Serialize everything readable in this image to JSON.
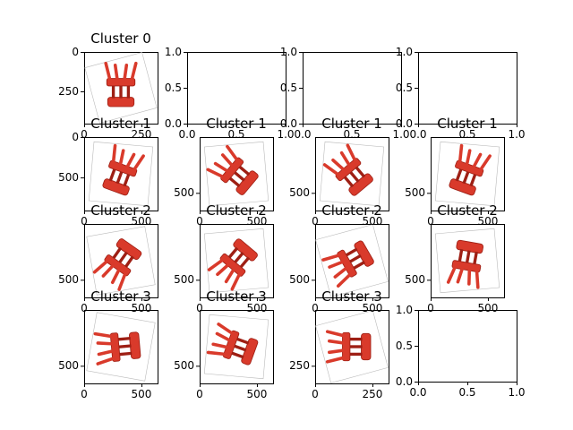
{
  "colors": {
    "chair": "#d93a2b",
    "chair_shade": "#9e1f14",
    "axis": "#000000"
  },
  "panels": [
    {
      "id": "r0c0",
      "title": "Cluster 0",
      "kind": "image",
      "xticks": [
        "0",
        "250"
      ],
      "yticks": [
        "0",
        "250"
      ],
      "rotation": 180
    },
    {
      "id": "r0c1",
      "title": "",
      "kind": "empty",
      "xticks": [
        "0.0",
        "0.5",
        "1.0"
      ],
      "yticks": [
        "0.0",
        "0.5",
        "1.0"
      ]
    },
    {
      "id": "r0c2",
      "title": "",
      "kind": "empty",
      "xticks": [
        "0.0",
        "0.5",
        "1.0"
      ],
      "yticks": [
        "0.0",
        "0.5",
        "1.0"
      ]
    },
    {
      "id": "r0c3",
      "title": "",
      "kind": "empty",
      "xticks": [
        "0.0",
        "0.5",
        "1.0"
      ],
      "yticks": [
        "0.0",
        "0.5",
        "1.0"
      ]
    },
    {
      "id": "r1c0",
      "title": "Cluster 1",
      "kind": "image",
      "xticks": [
        "0",
        "500"
      ],
      "yticks": [
        "0",
        "500"
      ],
      "rotation": 200
    },
    {
      "id": "r1c1",
      "title": "Cluster 1",
      "kind": "image",
      "xticks": [
        "0",
        "500"
      ],
      "yticks": [
        "500"
      ],
      "rotation": 130
    },
    {
      "id": "r1c2",
      "title": "Cluster 1",
      "kind": "image",
      "xticks": [
        "0",
        "500"
      ],
      "yticks": [
        "500"
      ],
      "rotation": 140
    },
    {
      "id": "r1c3",
      "title": "Cluster 1",
      "kind": "image",
      "xticks": [
        "0",
        "500"
      ],
      "yticks": [
        "500"
      ],
      "rotation": 200
    },
    {
      "id": "r2c0",
      "title": "Cluster 2",
      "kind": "image",
      "xticks": [
        "0",
        "500"
      ],
      "yticks": [
        "500"
      ],
      "rotation": 35
    },
    {
      "id": "r2c1",
      "title": "Cluster 2",
      "kind": "image",
      "xticks": [
        "0",
        "500"
      ],
      "yticks": [
        "500"
      ],
      "rotation": 40
    },
    {
      "id": "r2c2",
      "title": "Cluster 2",
      "kind": "image",
      "xticks": [
        "0",
        "500"
      ],
      "yticks": [
        "500"
      ],
      "rotation": 60
    },
    {
      "id": "r2c3",
      "title": "Cluster 2",
      "kind": "image",
      "xticks": [
        "0",
        "500"
      ],
      "yticks": [
        "500"
      ],
      "rotation": 10
    },
    {
      "id": "r3c0",
      "title": "Cluster 3",
      "kind": "image",
      "xticks": [
        "0",
        "500"
      ],
      "yticks": [
        "500"
      ],
      "rotation": 85
    },
    {
      "id": "r3c1",
      "title": "Cluster 3",
      "kind": "image",
      "xticks": [
        "0",
        "500"
      ],
      "yticks": [
        "500"
      ],
      "rotation": 110
    },
    {
      "id": "r3c2",
      "title": "Cluster 3",
      "kind": "image",
      "xticks": [
        "0",
        "250"
      ],
      "yticks": [
        "250"
      ],
      "rotation": 90
    },
    {
      "id": "r3c3",
      "title": "",
      "kind": "empty",
      "xticks": [
        "0.0",
        "0.5",
        "1.0"
      ],
      "yticks": [
        "0.0",
        "0.5",
        "1.0"
      ]
    }
  ]
}
